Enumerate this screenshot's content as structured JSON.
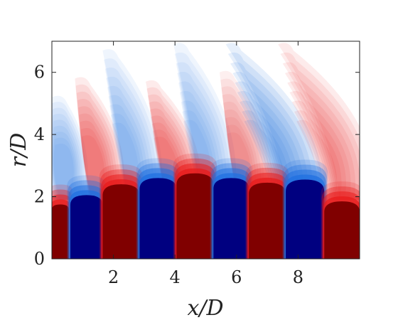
{
  "chart_data": {
    "type": "heatmap",
    "title": "",
    "xlabel": "x/D",
    "ylabel": "r/D",
    "xlim": [
      0,
      10
    ],
    "ylim": [
      0,
      7
    ],
    "x_ticks": [
      2,
      4,
      6,
      8
    ],
    "y_ticks": [
      0,
      2,
      4,
      6
    ],
    "x_tick_labels": [
      "2",
      "4",
      "6",
      "8"
    ],
    "y_tick_labels": [
      "0",
      "2",
      "4",
      "6"
    ],
    "colormap": "blue-white-red (diverging)",
    "colorbar": false,
    "grid": false,
    "colors": {
      "negative_saturated": "#000080",
      "positive_saturated": "#800000",
      "blue": "#1f6fe0",
      "red": "#e81a1a",
      "zero": "#ffffff"
    },
    "core_bands": [
      {
        "sign": "positive",
        "x_start": 0.0,
        "x_end": 0.55,
        "top_r": 1.75
      },
      {
        "sign": "negative",
        "x_start": 0.6,
        "x_end": 1.65,
        "top_r": 2.05
      },
      {
        "sign": "positive",
        "x_start": 1.65,
        "x_end": 2.85,
        "top_r": 2.4
      },
      {
        "sign": "negative",
        "x_start": 2.85,
        "x_end": 4.05,
        "top_r": 2.6
      },
      {
        "sign": "positive",
        "x_start": 4.05,
        "x_end": 5.25,
        "top_r": 2.75
      },
      {
        "sign": "negative",
        "x_start": 5.25,
        "x_end": 6.4,
        "top_r": 2.6
      },
      {
        "sign": "positive",
        "x_start": 6.4,
        "x_end": 7.6,
        "top_r": 2.45
      },
      {
        "sign": "negative",
        "x_start": 7.6,
        "x_end": 8.85,
        "top_r": 2.55
      },
      {
        "sign": "positive",
        "x_start": 8.85,
        "x_end": 10.0,
        "top_r": 1.85
      }
    ],
    "plumes": [
      {
        "sign": "negative",
        "base_x": 0.55,
        "top_x": 0.15,
        "top_r": 5.2,
        "intensity": 0.45
      },
      {
        "sign": "positive",
        "base_x": 1.75,
        "top_x": 0.9,
        "top_r": 5.8,
        "intensity": 0.55
      },
      {
        "sign": "negative",
        "base_x": 3.0,
        "top_x": 1.8,
        "top_r": 6.7,
        "intensity": 0.45
      },
      {
        "sign": "positive",
        "base_x": 4.25,
        "top_x": 3.2,
        "top_r": 5.7,
        "intensity": 0.55
      },
      {
        "sign": "negative",
        "base_x": 5.4,
        "top_x": 4.1,
        "top_r": 6.9,
        "intensity": 0.45
      },
      {
        "sign": "positive",
        "base_x": 6.55,
        "top_x": 5.6,
        "top_r": 6.0,
        "intensity": 0.45
      },
      {
        "sign": "negative",
        "base_x": 8.2,
        "top_x": 5.8,
        "top_r": 6.9,
        "intensity": 0.7
      },
      {
        "sign": "positive",
        "base_x": 9.9,
        "top_x": 7.5,
        "top_r": 6.9,
        "intensity": 0.55
      }
    ]
  }
}
